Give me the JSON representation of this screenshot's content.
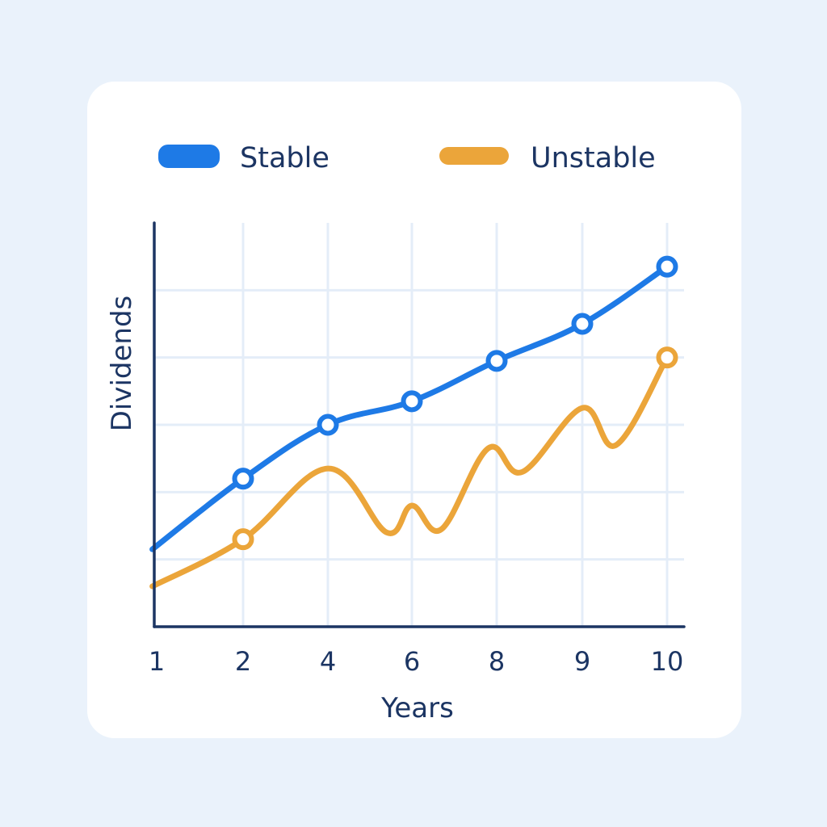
{
  "chart_data": {
    "type": "line",
    "xlabel": "Years",
    "ylabel": "Dividends",
    "x_ticks": [
      "1",
      "2",
      "4",
      "6",
      "8",
      "9",
      "10"
    ],
    "grid": true,
    "legend_placement": "top",
    "colors": {
      "stable": "#1e7ae6",
      "unstable": "#eba53a",
      "axis": "#1c3563",
      "grid": "#e4edf8"
    },
    "series": [
      {
        "name": "Stable",
        "color": "#1e7ae6",
        "x": [
          0.95,
          2,
          4,
          6,
          8,
          9,
          10
        ],
        "y": [
          1.15,
          2.2,
          3.0,
          3.35,
          3.95,
          4.5,
          5.35
        ],
        "markers_at": [
          2,
          4,
          6,
          8,
          9,
          10
        ]
      },
      {
        "name": "Unstable",
        "color": "#eba53a",
        "x": [
          0.95,
          2,
          4,
          5.4,
          6,
          6.7,
          7.8,
          8.3,
          9.0,
          9.4,
          10
        ],
        "y": [
          0.6,
          1.3,
          2.35,
          1.4,
          1.8,
          1.45,
          2.65,
          2.3,
          3.25,
          2.7,
          4.0
        ],
        "markers_at": [
          2,
          10
        ]
      }
    ],
    "xlim": [
      0.95,
      10.2
    ],
    "ylim": [
      0,
      6
    ]
  }
}
